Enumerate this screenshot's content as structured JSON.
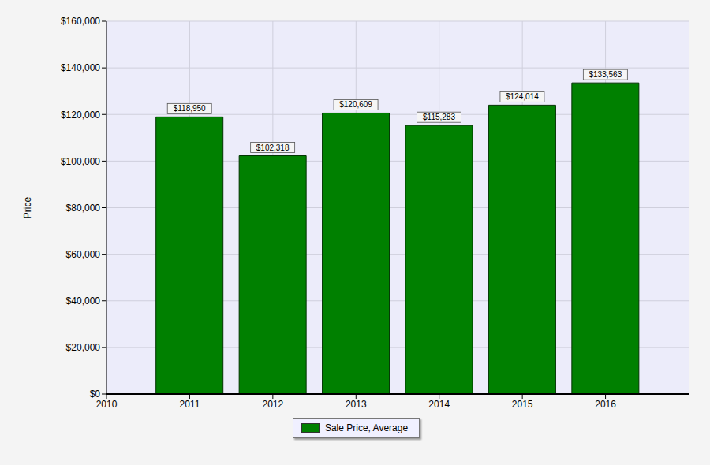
{
  "chart_data": {
    "type": "bar",
    "y_label": "Price",
    "x": [
      2011,
      2012,
      2013,
      2014,
      2015,
      2016
    ],
    "xlim": [
      2010,
      2017
    ],
    "xticks": [
      2010,
      2011,
      2012,
      2013,
      2014,
      2015,
      2016
    ],
    "ylim": [
      0,
      160000
    ],
    "yticks": [
      {
        "value": 0,
        "label": "$0"
      },
      {
        "value": 20000,
        "label": "$20,000"
      },
      {
        "value": 40000,
        "label": "$40,000"
      },
      {
        "value": 60000,
        "label": "$60,000"
      },
      {
        "value": 80000,
        "label": "$80,000"
      },
      {
        "value": 100000,
        "label": "$100,000"
      },
      {
        "value": 120000,
        "label": "$120,000"
      },
      {
        "value": 140000,
        "label": "$140,000"
      },
      {
        "value": 160000,
        "label": "$160,000"
      }
    ],
    "grid": true,
    "data_labels": true,
    "legend": "bottom",
    "series": [
      {
        "name": "Sale Price, Average",
        "color": "#008000",
        "values": [
          118950,
          102318,
          120609,
          115283,
          124014,
          133563
        ],
        "value_labels": [
          "$118,950",
          "$102,318",
          "$120,609",
          "$115,283",
          "$124,014",
          "$133,563"
        ]
      }
    ]
  }
}
